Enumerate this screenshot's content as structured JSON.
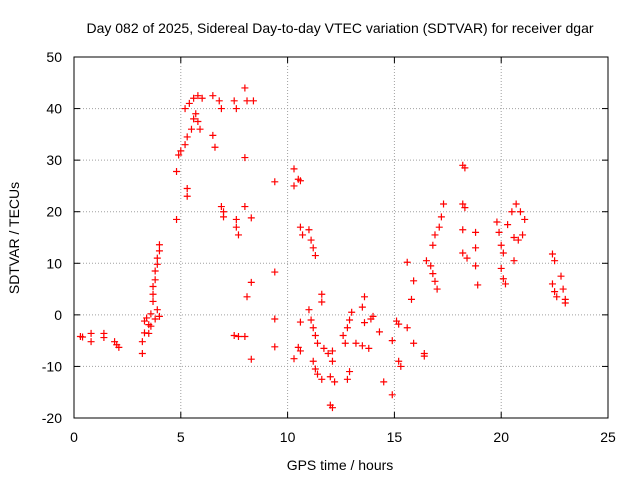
{
  "chart_data": {
    "type": "scatter",
    "title": "Day 082 of 2025, Sidereal Day-to-day VTEC variation (SDTVAR) for receiver dgar",
    "xlabel": "GPS time / hours",
    "ylabel": "SDTVAR / TECUs",
    "xlim": [
      0,
      25
    ],
    "ylim": [
      -20,
      50
    ],
    "xticks": [
      0,
      5,
      10,
      15,
      20,
      25
    ],
    "yticks": [
      -20,
      -10,
      0,
      10,
      20,
      30,
      40,
      50
    ],
    "grid": true,
    "marker": "+",
    "color": "#ff0000",
    "series": [
      {
        "name": "SDTVAR",
        "points": [
          [
            0.3,
            -4.2
          ],
          [
            0.4,
            -4.3
          ],
          [
            0.8,
            -3.6
          ],
          [
            0.8,
            -5.2
          ],
          [
            1.4,
            -3.6
          ],
          [
            1.4,
            -4.4
          ],
          [
            1.9,
            -5.2
          ],
          [
            2.0,
            -5.8
          ],
          [
            2.1,
            -6.3
          ],
          [
            3.2,
            -7.5
          ],
          [
            3.2,
            -5.2
          ],
          [
            3.3,
            -3.5
          ],
          [
            3.3,
            -1.2
          ],
          [
            3.4,
            -0.6
          ],
          [
            3.5,
            -1.9
          ],
          [
            3.5,
            -3.6
          ],
          [
            3.6,
            -2.2
          ],
          [
            3.6,
            0.2
          ],
          [
            3.7,
            2.6
          ],
          [
            3.7,
            4.0
          ],
          [
            3.7,
            5.5
          ],
          [
            3.8,
            6.8
          ],
          [
            3.8,
            8.5
          ],
          [
            3.9,
            9.8
          ],
          [
            3.9,
            11.0
          ],
          [
            4.0,
            12.4
          ],
          [
            4.0,
            13.6
          ],
          [
            3.9,
            1.0
          ],
          [
            3.8,
            -0.8
          ],
          [
            4.0,
            -0.3
          ],
          [
            4.8,
            18.5
          ],
          [
            4.8,
            27.8
          ],
          [
            4.9,
            31.0
          ],
          [
            5.0,
            31.8
          ],
          [
            5.3,
            23.0
          ],
          [
            5.3,
            24.5
          ],
          [
            5.2,
            33.0
          ],
          [
            5.3,
            34.5
          ],
          [
            5.2,
            40.0
          ],
          [
            5.4,
            41.0
          ],
          [
            5.5,
            36.0
          ],
          [
            5.6,
            38.0
          ],
          [
            5.7,
            39.0
          ],
          [
            5.8,
            37.5
          ],
          [
            5.9,
            36.0
          ],
          [
            5.6,
            42.0
          ],
          [
            5.8,
            42.5
          ],
          [
            6.0,
            42.0
          ],
          [
            6.5,
            42.5
          ],
          [
            6.5,
            34.8
          ],
          [
            6.6,
            32.5
          ],
          [
            6.8,
            41.5
          ],
          [
            6.9,
            40.0
          ],
          [
            6.9,
            21.0
          ],
          [
            7.0,
            19.0
          ],
          [
            7.0,
            20.0
          ],
          [
            7.5,
            41.5
          ],
          [
            7.6,
            40.0
          ],
          [
            7.6,
            18.5
          ],
          [
            7.6,
            17.0
          ],
          [
            7.7,
            15.5
          ],
          [
            7.5,
            -4.0
          ],
          [
            7.7,
            -4.2
          ],
          [
            8.0,
            44.0
          ],
          [
            8.1,
            41.5
          ],
          [
            8.4,
            41.5
          ],
          [
            8.0,
            30.5
          ],
          [
            8.0,
            21.0
          ],
          [
            8.3,
            18.8
          ],
          [
            8.3,
            6.3
          ],
          [
            8.1,
            3.5
          ],
          [
            8.0,
            -4.2
          ],
          [
            8.3,
            -8.6
          ],
          [
            9.4,
            25.8
          ],
          [
            9.4,
            8.3
          ],
          [
            9.4,
            -0.8
          ],
          [
            9.4,
            -6.2
          ],
          [
            10.3,
            28.3
          ],
          [
            10.3,
            25.0
          ],
          [
            10.5,
            26.3
          ],
          [
            10.6,
            26.0
          ],
          [
            10.6,
            -1.4
          ],
          [
            10.5,
            -6.3
          ],
          [
            10.6,
            -7.0
          ],
          [
            10.3,
            -8.5
          ],
          [
            10.6,
            17.0
          ],
          [
            10.7,
            15.5
          ],
          [
            11.0,
            16.5
          ],
          [
            11.1,
            14.5
          ],
          [
            11.2,
            13.0
          ],
          [
            11.3,
            11.5
          ],
          [
            11.0,
            1.0
          ],
          [
            11.1,
            -1.0
          ],
          [
            11.2,
            -2.5
          ],
          [
            11.3,
            -4.0
          ],
          [
            11.4,
            -5.5
          ],
          [
            11.6,
            4.0
          ],
          [
            11.6,
            2.5
          ],
          [
            11.7,
            -6.5
          ],
          [
            11.9,
            -7.5
          ],
          [
            12.1,
            -7.0
          ],
          [
            12.1,
            -9.0
          ],
          [
            11.2,
            -9.0
          ],
          [
            11.3,
            -10.5
          ],
          [
            11.4,
            -11.5
          ],
          [
            11.6,
            -12.5
          ],
          [
            12.0,
            -12.0
          ],
          [
            12.2,
            -13.0
          ],
          [
            12.0,
            -17.5
          ],
          [
            12.1,
            -18.0
          ],
          [
            12.6,
            -4.0
          ],
          [
            12.7,
            -5.5
          ],
          [
            12.8,
            -2.5
          ],
          [
            12.9,
            -1.0
          ],
          [
            13.0,
            0.5
          ],
          [
            12.9,
            -11.0
          ],
          [
            12.8,
            -12.5
          ],
          [
            13.2,
            -5.5
          ],
          [
            13.5,
            -6.0
          ],
          [
            13.8,
            -6.5
          ],
          [
            13.6,
            -1.5
          ],
          [
            13.5,
            1.5
          ],
          [
            13.6,
            3.5
          ],
          [
            13.9,
            -0.8
          ],
          [
            14.0,
            -0.3
          ],
          [
            14.3,
            -3.3
          ],
          [
            14.5,
            -13.0
          ],
          [
            14.9,
            -15.5
          ],
          [
            14.9,
            -5.0
          ],
          [
            15.1,
            -1.2
          ],
          [
            15.2,
            -1.8
          ],
          [
            15.2,
            -9.0
          ],
          [
            15.3,
            -10.0
          ],
          [
            15.6,
            10.2
          ],
          [
            15.6,
            -2.5
          ],
          [
            15.9,
            -5.5
          ],
          [
            15.8,
            3.0
          ],
          [
            15.9,
            6.6
          ],
          [
            16.4,
            -7.5
          ],
          [
            16.4,
            -8.0
          ],
          [
            16.5,
            10.5
          ],
          [
            16.7,
            9.5
          ],
          [
            16.8,
            8.0
          ],
          [
            16.9,
            6.5
          ],
          [
            17.0,
            5.0
          ],
          [
            16.8,
            13.5
          ],
          [
            16.9,
            15.5
          ],
          [
            17.1,
            17.0
          ],
          [
            17.2,
            19.0
          ],
          [
            17.3,
            21.5
          ],
          [
            18.2,
            29.0
          ],
          [
            18.3,
            28.5
          ],
          [
            18.2,
            21.5
          ],
          [
            18.3,
            20.8
          ],
          [
            18.2,
            16.5
          ],
          [
            18.2,
            12.0
          ],
          [
            18.4,
            11.0
          ],
          [
            18.8,
            16.0
          ],
          [
            18.8,
            13.0
          ],
          [
            18.8,
            9.5
          ],
          [
            18.9,
            5.8
          ],
          [
            19.8,
            18.0
          ],
          [
            19.9,
            16.0
          ],
          [
            20.0,
            13.5
          ],
          [
            20.1,
            12.0
          ],
          [
            20.0,
            9.0
          ],
          [
            20.1,
            7.0
          ],
          [
            20.2,
            6.0
          ],
          [
            20.3,
            17.5
          ],
          [
            20.5,
            20.0
          ],
          [
            20.7,
            21.5
          ],
          [
            20.9,
            20.0
          ],
          [
            20.6,
            15.0
          ],
          [
            20.8,
            14.5
          ],
          [
            21.0,
            15.5
          ],
          [
            21.1,
            18.5
          ],
          [
            20.6,
            10.5
          ],
          [
            22.4,
            11.8
          ],
          [
            22.5,
            10.5
          ],
          [
            22.4,
            6.0
          ],
          [
            22.5,
            4.5
          ],
          [
            22.6,
            3.5
          ],
          [
            22.8,
            7.5
          ],
          [
            22.9,
            5.0
          ],
          [
            23.0,
            3.0
          ],
          [
            23.0,
            2.3
          ]
        ]
      }
    ]
  }
}
